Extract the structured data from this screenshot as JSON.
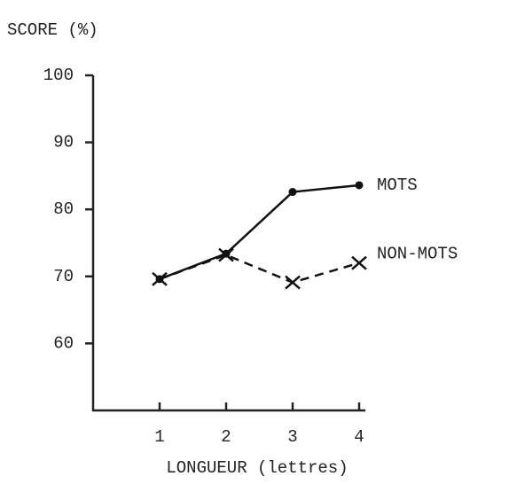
{
  "chart_data": {
    "type": "line",
    "y_label": "SCORE (%)",
    "x_label": "LONGUEUR (lettres)",
    "x": [
      1,
      2,
      3,
      4
    ],
    "xlim": [
      0,
      4
    ],
    "xticks": [
      1,
      2,
      3,
      4
    ],
    "ylim": [
      50,
      100
    ],
    "yticks": [
      60,
      70,
      80,
      90,
      100
    ],
    "series": [
      {
        "name": "MOTS",
        "color": "#111111",
        "values": [
          69.6,
          73.4,
          82.6,
          83.6
        ]
      },
      {
        "name": "NON-MOTS",
        "color": "#111111",
        "values": [
          69.6,
          73.2,
          69.1,
          72
        ]
      }
    ]
  }
}
